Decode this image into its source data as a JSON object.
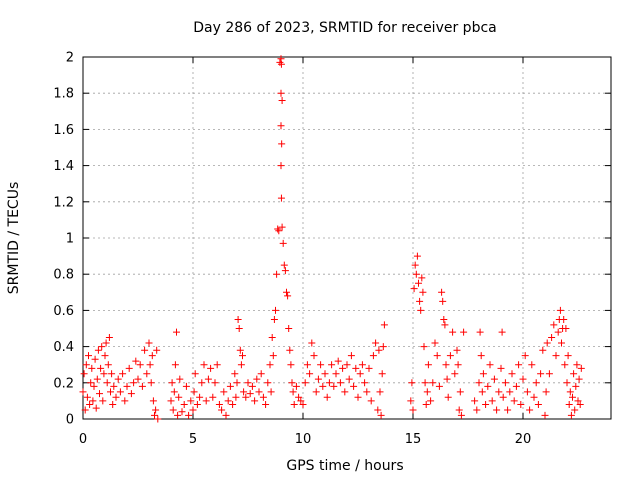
{
  "chart_data": {
    "type": "scatter",
    "title": "Day 286 of 2023, SRMTID for receiver pbca",
    "xlabel": "GPS time / hours",
    "ylabel": "SRMTID / TECUs",
    "xlim": [
      0,
      24
    ],
    "ylim": [
      0,
      2
    ],
    "x_ticks": [
      0,
      5,
      10,
      15,
      20
    ],
    "x_tick_labels": [
      "0",
      "5",
      "10",
      "15",
      "20"
    ],
    "y_ticks": [
      0,
      0.2,
      0.4,
      0.6,
      0.8,
      1,
      1.2,
      1.4,
      1.6,
      1.8,
      2
    ],
    "y_tick_labels": [
      "0",
      "0.2",
      "0.4",
      "0.6",
      "0.8",
      "1",
      "1.2",
      "1.4",
      "1.6",
      "1.8",
      "2"
    ],
    "grid": true,
    "marker": "+",
    "marker_color": "#ff0000",
    "series": [
      {
        "name": "SRMTID",
        "points": [
          [
            0.0,
            0.15
          ],
          [
            0.05,
            0.25
          ],
          [
            0.1,
            0.05
          ],
          [
            0.15,
            0.3
          ],
          [
            0.2,
            0.12
          ],
          [
            0.25,
            0.35
          ],
          [
            0.3,
            0.08
          ],
          [
            0.35,
            0.2
          ],
          [
            0.4,
            0.28
          ],
          [
            0.45,
            0.1
          ],
          [
            0.5,
            0.18
          ],
          [
            0.55,
            0.33
          ],
          [
            0.6,
            0.06
          ],
          [
            0.65,
            0.22
          ],
          [
            0.7,
            0.38
          ],
          [
            0.75,
            0.14
          ],
          [
            0.8,
            0.28
          ],
          [
            0.85,
            0.4
          ],
          [
            0.9,
            0.1
          ],
          [
            0.95,
            0.25
          ],
          [
            1.0,
            0.35
          ],
          [
            1.05,
            0.42
          ],
          [
            1.1,
            0.2
          ],
          [
            1.15,
            0.3
          ],
          [
            1.2,
            0.45
          ],
          [
            1.25,
            0.15
          ],
          [
            1.3,
            0.25
          ],
          [
            1.35,
            0.08
          ],
          [
            1.4,
            0.18
          ],
          [
            1.5,
            0.12
          ],
          [
            1.6,
            0.22
          ],
          [
            1.7,
            0.15
          ],
          [
            1.8,
            0.25
          ],
          [
            1.9,
            0.1
          ],
          [
            2.0,
            0.18
          ],
          [
            2.1,
            0.28
          ],
          [
            2.2,
            0.14
          ],
          [
            2.3,
            0.2
          ],
          [
            2.4,
            0.32
          ],
          [
            2.5,
            0.22
          ],
          [
            2.6,
            0.3
          ],
          [
            2.7,
            0.18
          ],
          [
            2.8,
            0.38
          ],
          [
            2.9,
            0.25
          ],
          [
            3.0,
            0.42
          ],
          [
            3.05,
            0.3
          ],
          [
            3.1,
            0.2
          ],
          [
            3.15,
            0.35
          ],
          [
            3.2,
            0.1
          ],
          [
            3.25,
            0.02
          ],
          [
            3.3,
            0.05
          ],
          [
            3.35,
            0.38
          ],
          [
            3.4,
            0.0
          ],
          [
            4.0,
            0.1
          ],
          [
            4.05,
            0.2
          ],
          [
            4.1,
            0.05
          ],
          [
            4.15,
            0.15
          ],
          [
            4.2,
            0.3
          ],
          [
            4.25,
            0.48
          ],
          [
            4.3,
            0.02
          ],
          [
            4.35,
            0.12
          ],
          [
            4.4,
            0.22
          ],
          [
            4.5,
            0.04
          ],
          [
            4.6,
            0.08
          ],
          [
            4.7,
            0.18
          ],
          [
            4.8,
            0.02
          ],
          [
            4.9,
            0.1
          ],
          [
            5.0,
            0.05
          ],
          [
            5.05,
            0.15
          ],
          [
            5.1,
            0.25
          ],
          [
            5.2,
            0.08
          ],
          [
            5.3,
            0.12
          ],
          [
            5.4,
            0.2
          ],
          [
            5.5,
            0.3
          ],
          [
            5.6,
            0.1
          ],
          [
            5.7,
            0.22
          ],
          [
            5.8,
            0.28
          ],
          [
            5.9,
            0.12
          ],
          [
            6.0,
            0.2
          ],
          [
            6.1,
            0.3
          ],
          [
            6.2,
            0.08
          ],
          [
            6.3,
            0.05
          ],
          [
            6.4,
            0.15
          ],
          [
            6.5,
            0.02
          ],
          [
            6.6,
            0.1
          ],
          [
            6.7,
            0.18
          ],
          [
            6.8,
            0.08
          ],
          [
            6.9,
            0.25
          ],
          [
            6.95,
            0.12
          ],
          [
            7.0,
            0.2
          ],
          [
            7.05,
            0.55
          ],
          [
            7.1,
            0.5
          ],
          [
            7.15,
            0.38
          ],
          [
            7.2,
            0.3
          ],
          [
            7.25,
            0.35
          ],
          [
            7.3,
            0.15
          ],
          [
            7.4,
            0.12
          ],
          [
            7.5,
            0.2
          ],
          [
            7.6,
            0.14
          ],
          [
            7.7,
            0.18
          ],
          [
            7.8,
            0.1
          ],
          [
            7.9,
            0.22
          ],
          [
            8.0,
            0.15
          ],
          [
            8.1,
            0.25
          ],
          [
            8.2,
            0.12
          ],
          [
            8.3,
            0.08
          ],
          [
            8.4,
            0.2
          ],
          [
            8.5,
            0.3
          ],
          [
            8.55,
            0.15
          ],
          [
            8.6,
            0.45
          ],
          [
            8.65,
            0.35
          ],
          [
            8.7,
            0.55
          ],
          [
            8.75,
            0.6
          ],
          [
            8.8,
            0.8
          ],
          [
            8.85,
            1.05
          ],
          [
            8.9,
            1.04
          ],
          [
            8.95,
            1.97
          ],
          [
            9.0,
            1.99
          ],
          [
            9.02,
            1.96
          ],
          [
            9.0,
            1.8
          ],
          [
            9.05,
            1.76
          ],
          [
            9.0,
            1.62
          ],
          [
            9.03,
            1.52
          ],
          [
            9.0,
            1.4
          ],
          [
            9.02,
            1.22
          ],
          [
            9.05,
            1.06
          ],
          [
            9.1,
            0.97
          ],
          [
            9.15,
            0.85
          ],
          [
            9.2,
            0.82
          ],
          [
            9.25,
            0.7
          ],
          [
            9.3,
            0.68
          ],
          [
            9.35,
            0.5
          ],
          [
            9.4,
            0.38
          ],
          [
            9.45,
            0.3
          ],
          [
            9.5,
            0.2
          ],
          [
            9.55,
            0.15
          ],
          [
            9.6,
            0.08
          ],
          [
            9.7,
            0.18
          ],
          [
            9.8,
            0.12
          ],
          [
            9.9,
            0.1
          ],
          [
            10.0,
            0.08
          ],
          [
            10.1,
            0.2
          ],
          [
            10.2,
            0.3
          ],
          [
            10.3,
            0.25
          ],
          [
            10.4,
            0.42
          ],
          [
            10.5,
            0.35
          ],
          [
            10.6,
            0.15
          ],
          [
            10.7,
            0.22
          ],
          [
            10.8,
            0.3
          ],
          [
            10.9,
            0.18
          ],
          [
            11.0,
            0.25
          ],
          [
            11.1,
            0.12
          ],
          [
            11.2,
            0.2
          ],
          [
            11.3,
            0.3
          ],
          [
            11.4,
            0.18
          ],
          [
            11.5,
            0.25
          ],
          [
            11.6,
            0.32
          ],
          [
            11.7,
            0.2
          ],
          [
            11.8,
            0.28
          ],
          [
            11.9,
            0.15
          ],
          [
            12.0,
            0.3
          ],
          [
            12.1,
            0.22
          ],
          [
            12.2,
            0.35
          ],
          [
            12.3,
            0.18
          ],
          [
            12.4,
            0.28
          ],
          [
            12.5,
            0.12
          ],
          [
            12.6,
            0.25
          ],
          [
            12.7,
            0.3
          ],
          [
            12.8,
            0.2
          ],
          [
            12.9,
            0.15
          ],
          [
            13.0,
            0.28
          ],
          [
            13.1,
            0.1
          ],
          [
            13.2,
            0.35
          ],
          [
            13.3,
            0.42
          ],
          [
            13.4,
            0.05
          ],
          [
            13.45,
            0.38
          ],
          [
            13.5,
            0.15
          ],
          [
            13.55,
            0.02
          ],
          [
            13.6,
            0.25
          ],
          [
            13.65,
            0.4
          ],
          [
            13.7,
            0.52
          ],
          [
            14.9,
            0.1
          ],
          [
            14.95,
            0.2
          ],
          [
            15.0,
            0.05
          ],
          [
            15.05,
            0.72
          ],
          [
            15.1,
            0.85
          ],
          [
            15.15,
            0.8
          ],
          [
            15.2,
            0.9
          ],
          [
            15.25,
            0.75
          ],
          [
            15.3,
            0.65
          ],
          [
            15.35,
            0.6
          ],
          [
            15.4,
            0.78
          ],
          [
            15.45,
            0.7
          ],
          [
            15.5,
            0.4
          ],
          [
            15.55,
            0.2
          ],
          [
            15.6,
            0.08
          ],
          [
            15.65,
            0.15
          ],
          [
            15.7,
            0.3
          ],
          [
            15.8,
            0.1
          ],
          [
            15.9,
            0.2
          ],
          [
            16.0,
            0.42
          ],
          [
            16.1,
            0.35
          ],
          [
            16.2,
            0.18
          ],
          [
            16.3,
            0.7
          ],
          [
            16.35,
            0.65
          ],
          [
            16.4,
            0.55
          ],
          [
            16.45,
            0.52
          ],
          [
            16.5,
            0.3
          ],
          [
            16.55,
            0.22
          ],
          [
            16.6,
            0.12
          ],
          [
            16.7,
            0.35
          ],
          [
            16.8,
            0.48
          ],
          [
            16.9,
            0.25
          ],
          [
            17.0,
            0.38
          ],
          [
            17.05,
            0.3
          ],
          [
            17.1,
            0.05
          ],
          [
            17.15,
            0.15
          ],
          [
            17.2,
            0.02
          ],
          [
            17.3,
            0.48
          ],
          [
            17.8,
            0.1
          ],
          [
            17.9,
            0.05
          ],
          [
            18.0,
            0.2
          ],
          [
            18.05,
            0.48
          ],
          [
            18.1,
            0.35
          ],
          [
            18.15,
            0.15
          ],
          [
            18.2,
            0.25
          ],
          [
            18.3,
            0.08
          ],
          [
            18.4,
            0.18
          ],
          [
            18.5,
            0.3
          ],
          [
            18.6,
            0.1
          ],
          [
            18.7,
            0.22
          ],
          [
            18.8,
            0.05
          ],
          [
            18.9,
            0.15
          ],
          [
            19.0,
            0.28
          ],
          [
            19.05,
            0.48
          ],
          [
            19.1,
            0.12
          ],
          [
            19.2,
            0.2
          ],
          [
            19.3,
            0.05
          ],
          [
            19.4,
            0.15
          ],
          [
            19.5,
            0.25
          ],
          [
            19.6,
            0.1
          ],
          [
            19.7,
            0.18
          ],
          [
            19.8,
            0.3
          ],
          [
            19.9,
            0.08
          ],
          [
            20.0,
            0.22
          ],
          [
            20.1,
            0.35
          ],
          [
            20.2,
            0.15
          ],
          [
            20.3,
            0.05
          ],
          [
            20.4,
            0.3
          ],
          [
            20.5,
            0.12
          ],
          [
            20.6,
            0.2
          ],
          [
            20.7,
            0.08
          ],
          [
            20.8,
            0.25
          ],
          [
            20.9,
            0.38
          ],
          [
            21.0,
            0.02
          ],
          [
            21.05,
            0.15
          ],
          [
            21.1,
            0.42
          ],
          [
            21.2,
            0.25
          ],
          [
            21.3,
            0.45
          ],
          [
            21.4,
            0.52
          ],
          [
            21.5,
            0.35
          ],
          [
            21.6,
            0.48
          ],
          [
            21.65,
            0.55
          ],
          [
            21.7,
            0.6
          ],
          [
            21.75,
            0.42
          ],
          [
            21.8,
            0.5
          ],
          [
            21.85,
            0.55
          ],
          [
            21.9,
            0.3
          ],
          [
            21.95,
            0.5
          ],
          [
            22.0,
            0.2
          ],
          [
            22.05,
            0.35
          ],
          [
            22.1,
            0.08
          ],
          [
            22.15,
            0.15
          ],
          [
            22.2,
            0.02
          ],
          [
            22.25,
            0.12
          ],
          [
            22.3,
            0.25
          ],
          [
            22.35,
            0.05
          ],
          [
            22.4,
            0.18
          ],
          [
            22.45,
            0.3
          ],
          [
            22.5,
            0.1
          ],
          [
            22.55,
            0.22
          ],
          [
            22.6,
            0.08
          ],
          [
            22.65,
            0.28
          ]
        ]
      }
    ]
  }
}
